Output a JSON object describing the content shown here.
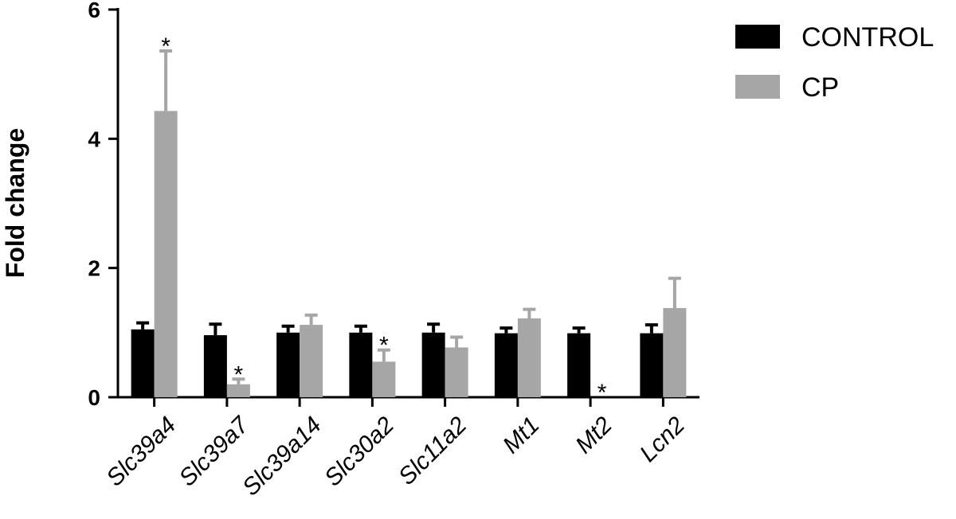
{
  "chart_data": {
    "type": "bar",
    "xlabel": "",
    "ylabel": "Fold change",
    "ylim": [
      0,
      6
    ],
    "yticks": [
      "0",
      "2",
      "4",
      "6"
    ],
    "categories": [
      "Slc39a4",
      "Slc39a7",
      "Slc39a14",
      "Slc30a2",
      "Slc11a2",
      "Mt1",
      "Mt2",
      "Lcn2"
    ],
    "series": [
      {
        "name": "CONTROL",
        "color": "#000000",
        "values": [
          1.05,
          0.96,
          1.0,
          1.0,
          1.0,
          0.99,
          0.99,
          0.99
        ],
        "errors": [
          0.1,
          0.17,
          0.1,
          0.1,
          0.13,
          0.08,
          0.08,
          0.13
        ]
      },
      {
        "name": "CP",
        "color": "#a6a6a6",
        "values": [
          4.43,
          0.2,
          1.12,
          0.55,
          0.77,
          1.22,
          0.0,
          1.38
        ],
        "errors": [
          0.93,
          0.08,
          0.15,
          0.18,
          0.16,
          0.14,
          0.0,
          0.46
        ]
      }
    ],
    "significance": {
      "marker": "*",
      "cp_significant": [
        true,
        true,
        false,
        true,
        false,
        false,
        true,
        false
      ]
    },
    "legend": {
      "position": "top-right",
      "entries": [
        "CONTROL",
        "CP"
      ]
    },
    "grid": false
  }
}
